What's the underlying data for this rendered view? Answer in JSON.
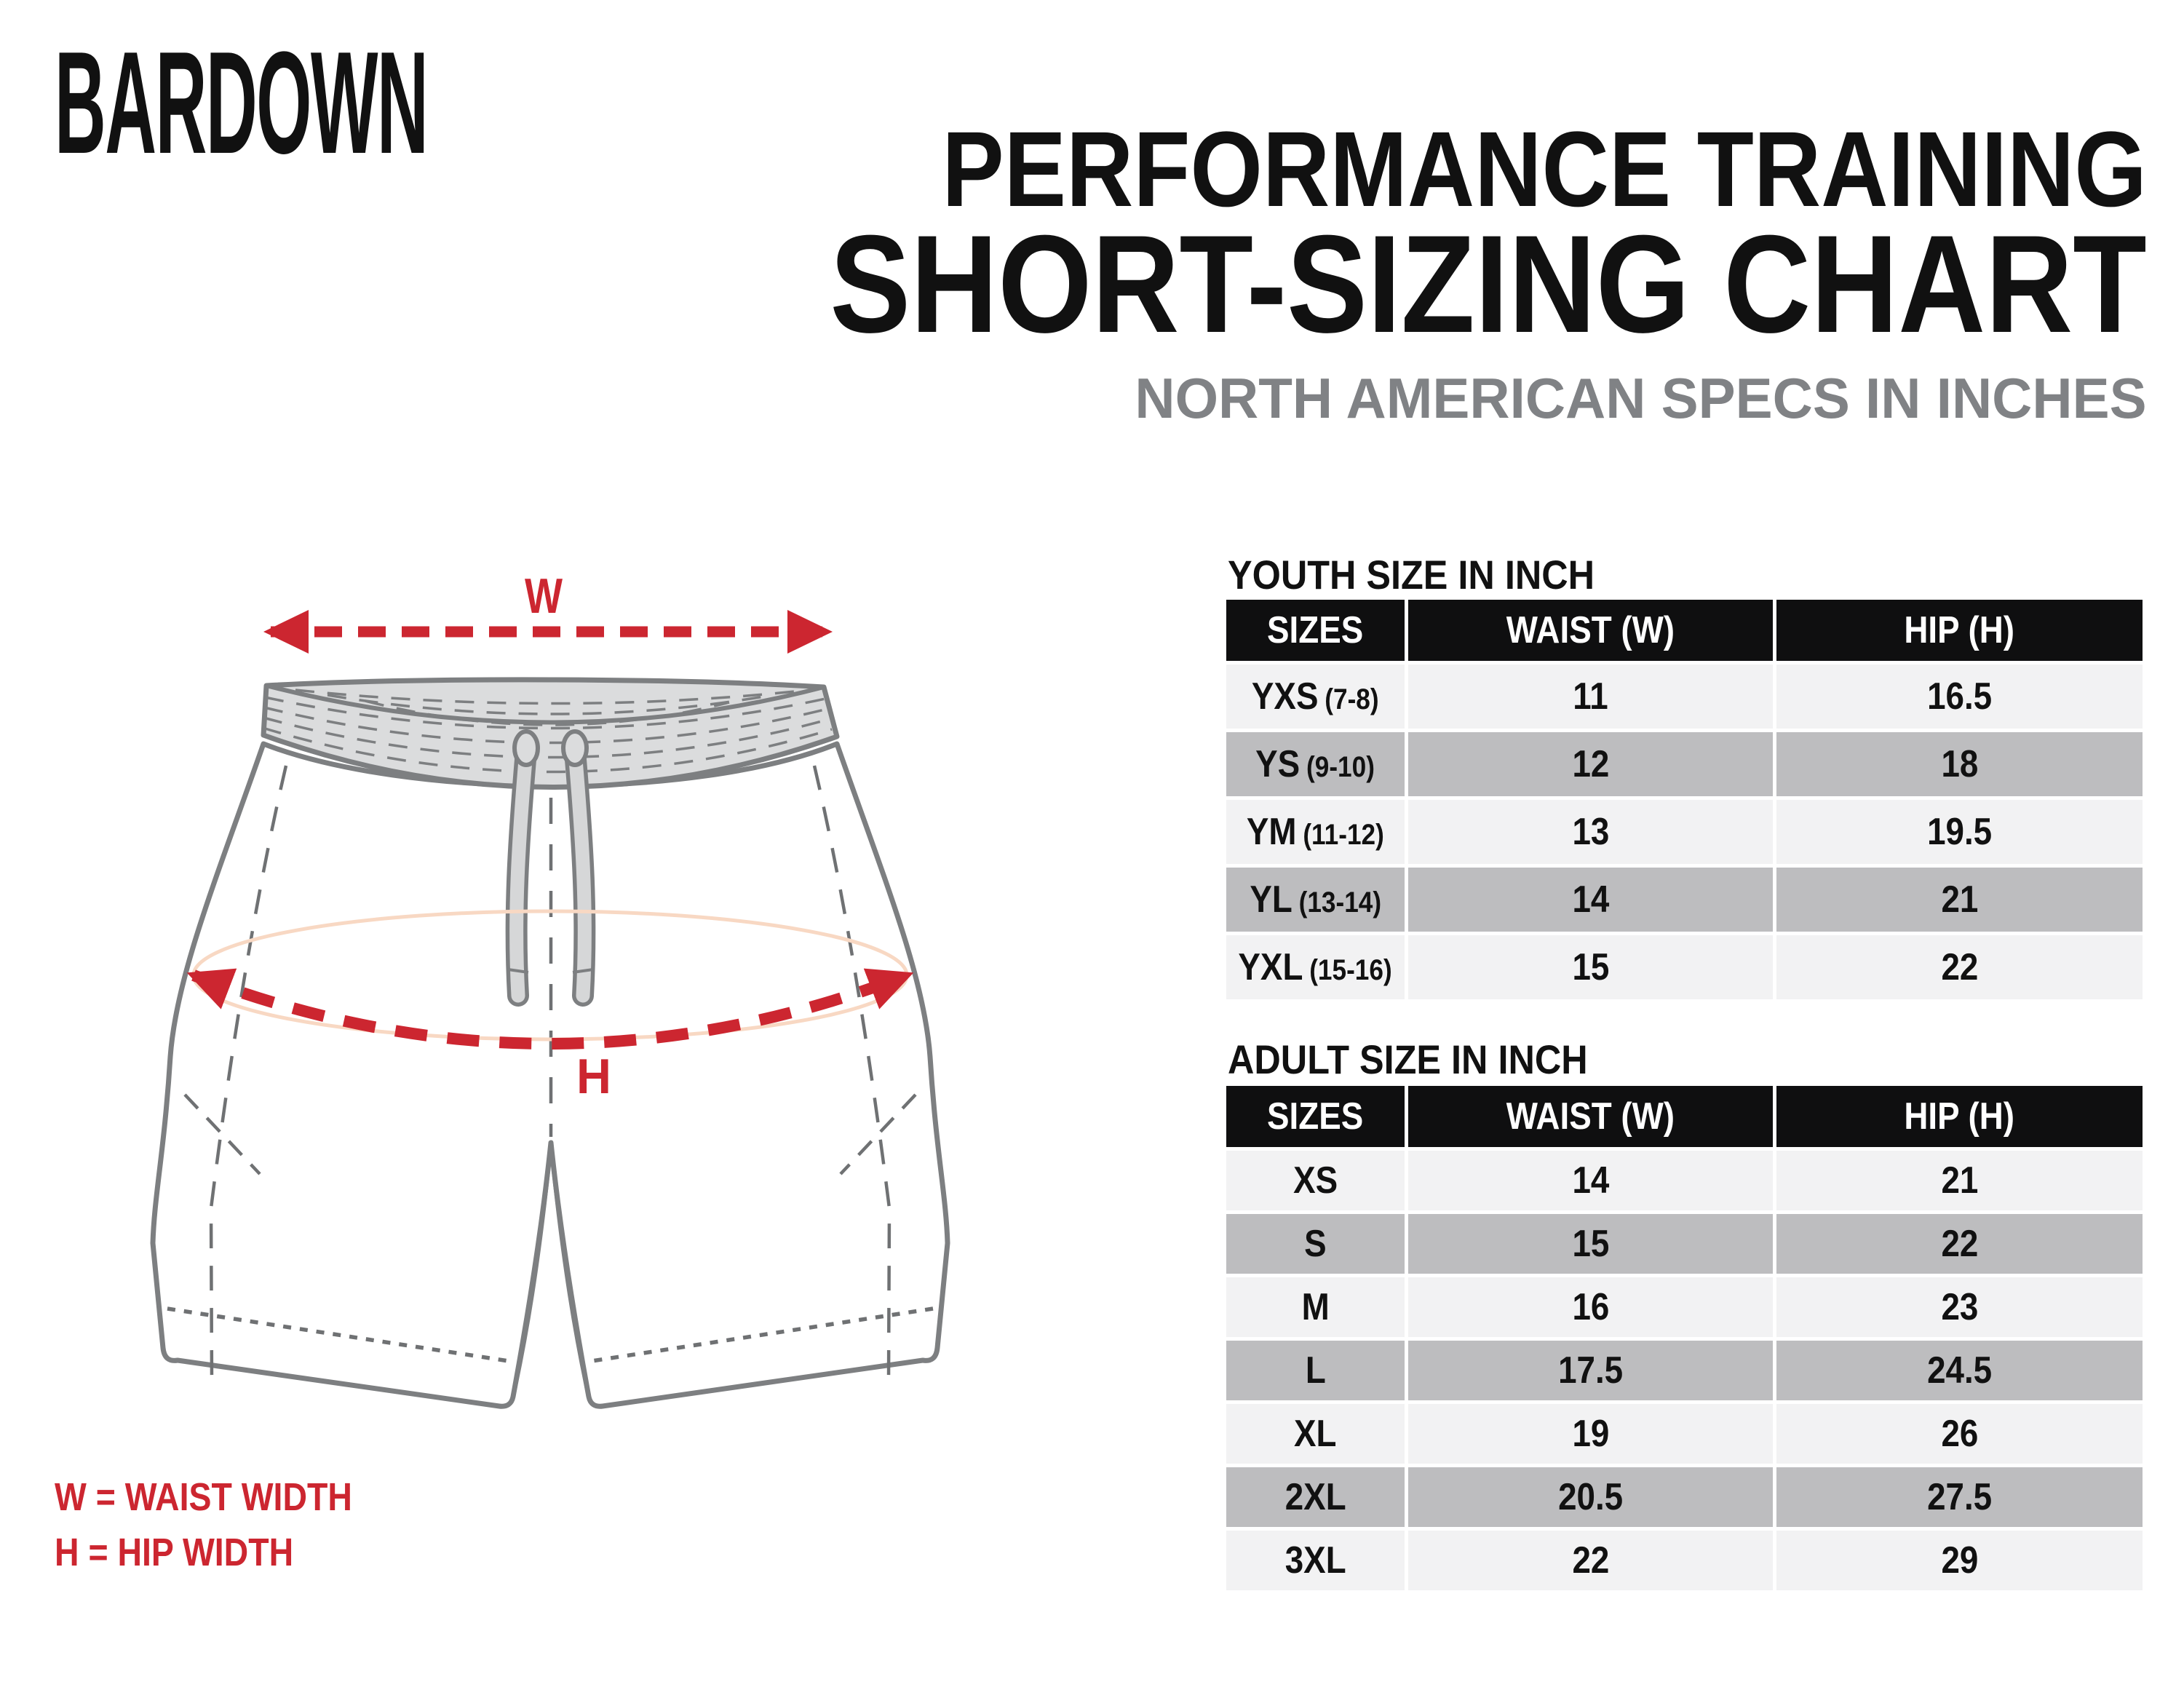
{
  "brand": {
    "logo": "BARDOWN"
  },
  "header": {
    "title_line1": "PERFORMANCE TRAINING",
    "title_line2": "SHORT-SIZING CHART",
    "subtitle": "NORTH AMERICAN SPECS IN INCHES"
  },
  "diagram": {
    "w_label": "W",
    "h_label": "H",
    "legend_w": "W = WAIST WIDTH",
    "legend_h": "H = HIP WIDTH"
  },
  "colors": {
    "accent_red": "#cc2630",
    "table_header_bg": "#0f0f10",
    "row_light": "#f2f2f3",
    "row_gray": "#bdbdbf",
    "subtitle_gray": "#808285",
    "illustration_gray": "#7d7f81",
    "waistband_fill": "#dbdcdd",
    "hip_ellipse_peach": "#f8d8c3"
  },
  "tables": {
    "youth": {
      "title": "YOUTH SIZE IN INCH",
      "columns": [
        "SIZES",
        "WAIST (W)",
        "HIP (H)"
      ],
      "rows": [
        {
          "size": "YXS",
          "age": "(7-8)",
          "waist": "11",
          "hip": "16.5"
        },
        {
          "size": "YS",
          "age": "(9-10)",
          "waist": "12",
          "hip": "18"
        },
        {
          "size": "YM",
          "age": "(11-12)",
          "waist": "13",
          "hip": "19.5"
        },
        {
          "size": "YL",
          "age": "(13-14)",
          "waist": "14",
          "hip": "21"
        },
        {
          "size": "YXL",
          "age": "(15-16)",
          "waist": "15",
          "hip": "22"
        }
      ]
    },
    "adult": {
      "title": "ADULT SIZE IN INCH",
      "columns": [
        "SIZES",
        "WAIST (W)",
        "HIP (H)"
      ],
      "rows": [
        {
          "size": "XS",
          "age": "",
          "waist": "14",
          "hip": "21"
        },
        {
          "size": "S",
          "age": "",
          "waist": "15",
          "hip": "22"
        },
        {
          "size": "M",
          "age": "",
          "waist": "16",
          "hip": "23"
        },
        {
          "size": "L",
          "age": "",
          "waist": "17.5",
          "hip": "24.5"
        },
        {
          "size": "XL",
          "age": "",
          "waist": "19",
          "hip": "26"
        },
        {
          "size": "2XL",
          "age": "",
          "waist": "20.5",
          "hip": "27.5"
        },
        {
          "size": "3XL",
          "age": "",
          "waist": "22",
          "hip": "29"
        }
      ]
    }
  }
}
